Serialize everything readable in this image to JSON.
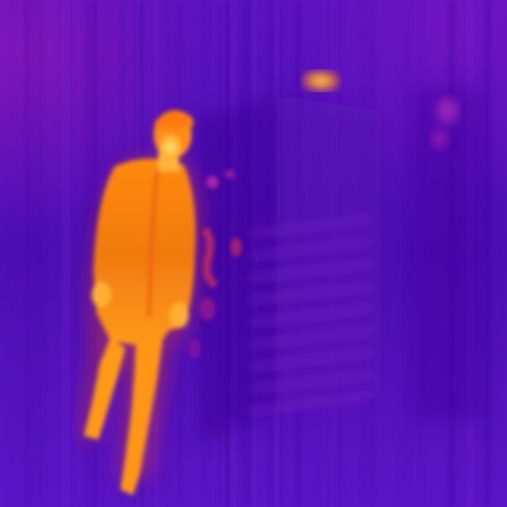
{
  "image": {
    "kind": "thermal-camera-frame",
    "palette": "ironbow",
    "colors": {
      "background_cold": "#5010b8",
      "background_mid": "#6a1ac8",
      "structure_cool": "#4a0aa8",
      "warm_magenta": "#a01cb0",
      "hot_orange": "#f06a10",
      "hotter_orange": "#ff9a14",
      "hottest_yellow": "#ffd24a"
    }
  }
}
